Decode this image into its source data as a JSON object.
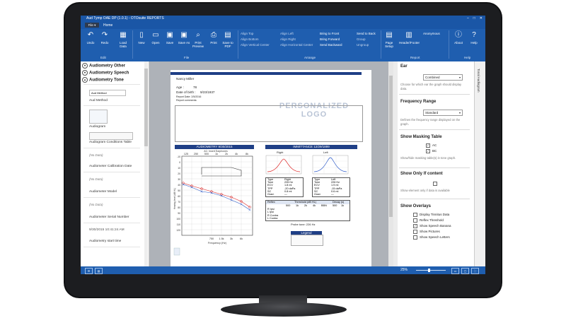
{
  "window": {
    "title": "Aud Tymp OAE DP (1.0.1) - OTOsuite REPORTS"
  },
  "menu": {
    "file": "File ▾",
    "home": "Home"
  },
  "ribbon": {
    "buttons": [
      {
        "label": "Undo",
        "icon": "undo-icon"
      },
      {
        "label": "Redo",
        "icon": "redo-icon"
      },
      {
        "label": "Load Data",
        "icon": "chart-icon"
      },
      {
        "label": "New",
        "icon": "new-icon"
      },
      {
        "label": "Open",
        "icon": "open-icon"
      },
      {
        "label": "Save",
        "icon": "save-icon"
      },
      {
        "label": "Save As",
        "icon": "save-as-icon"
      },
      {
        "label": "Print Preview",
        "icon": "preview-icon"
      },
      {
        "label": "Print",
        "icon": "print-icon"
      },
      {
        "label": "Save to PDF",
        "icon": "pdf-icon"
      },
      {
        "label": "Page Setup",
        "icon": "page-setup-icon"
      },
      {
        "label": "Header/Footer",
        "icon": "header-icon"
      },
      {
        "label": "About",
        "icon": "info-icon"
      },
      {
        "label": "Help",
        "icon": "help-icon"
      }
    ],
    "align": [
      "Align Top",
      "Align Bottom",
      "Align Vertical Center",
      "Align Left",
      "Align Right",
      "Align Horizontal Center"
    ],
    "order": [
      "Bring to Front",
      "Bring Forward",
      "Send Backward",
      "Send to Back",
      "Group",
      "Ungroup"
    ],
    "groups": {
      "edit": "Edit",
      "file": "File",
      "arrange": "Arrange",
      "report": "Report",
      "help": "Help"
    },
    "user": "Anonymous"
  },
  "left_panel": {
    "sections": [
      "Audiometry Other",
      "Audiometry Speech",
      "Audiometry Tone"
    ],
    "items": [
      {
        "box": "Aud Method",
        "label": "Aud Method"
      },
      {
        "label": "Audiogram"
      },
      {
        "label": "Audiogram Conditions Table"
      },
      {
        "nodata": "(No Data)",
        "label": "Audiometer Calibration Date"
      },
      {
        "nodata": "(No Data)",
        "label": "Audiometer Model"
      },
      {
        "nodata": "(No Data)",
        "label": "Audiometer Serial Number"
      },
      {
        "value": "9/30/2015 10:41:24 AM",
        "label": "Audiometry start time"
      }
    ]
  },
  "report": {
    "name": "Nancy Miller",
    "age_label": "Age :",
    "age": "78",
    "dob_label": "Date of birth :",
    "dob": "9/23/1937",
    "report_date": "Report Date: 2/5/2016",
    "report_comments": "Report comments:",
    "logo_line1": "PERSONALIZED",
    "logo_line2": "LOGO",
    "audiometry_header": "AUDIOMETRY  9/30/2015",
    "immittance_header": "IMMITTANCE  12/29/1899",
    "ac_label": "AC: Insert Earphones",
    "freq_top": [
      "125",
      "250",
      "500",
      "1k",
      "2k",
      "4k",
      "8k"
    ],
    "freq_bottom": [
      "750",
      "1.5k",
      "3k",
      "6k"
    ],
    "y_ticks": [
      "-10",
      "0",
      "10",
      "20",
      "30",
      "40",
      "50",
      "60",
      "70",
      "80",
      "90",
      "100",
      "110",
      "120"
    ],
    "y_label": "Hearing level (dB HL)",
    "x_label": "Frequency (Hz)",
    "right_label": "Right",
    "left_label": "Left",
    "probe_tone": "Probe tone: 226 Hz",
    "legend": "Legend",
    "reflex_header": [
      "Reflex",
      "Threshold (dB HL)",
      "Decay (s)"
    ],
    "reflex_freqs": [
      "500",
      "1k",
      "2k",
      "4k",
      "BBN",
      "500",
      "1k"
    ],
    "reflex_rows": [
      "R Ipsi",
      "L Ipsi",
      "R Contra",
      "L Contra"
    ],
    "tymp_rows": [
      "Type",
      "Tone",
      "ECV",
      "TPP",
      "SC",
      "Grad."
    ],
    "tymp_right": [
      "Right",
      "226 Hz",
      "1.8 ml",
      "-20 daPa",
      "0.8 ml",
      "—"
    ],
    "tymp_left": [
      "Left",
      "226 Hz",
      "1.9 ml",
      "-15 daPa",
      "0.6 ml",
      "—"
    ]
  },
  "right_panel": {
    "ear": {
      "title": "Ear",
      "value": "Combined",
      "help": "Choose for which ear the graph should display data."
    },
    "freq_range": {
      "title": "Frequency Range",
      "value": "Standard",
      "help": "Defines the frequency range displayed on the graph."
    },
    "masking": {
      "title": "Show Masking Table",
      "options": [
        "AC",
        "BC"
      ],
      "help": "Show/hide masking table(s) in tone graph."
    },
    "only_content": {
      "title": "Show Only If content",
      "help": "Show element only if data is available"
    },
    "overlays": {
      "title": "Show Overlays",
      "options": [
        "Display Tinnitus Data",
        "Reflex Threshold",
        "Show Speech Banana",
        "Show Pictures",
        "Show Speech Letters"
      ],
      "checked": [
        false,
        false,
        true,
        false,
        false
      ]
    },
    "side_tab": "Tonal Audiogram"
  },
  "status": {
    "zoom": "25%"
  }
}
